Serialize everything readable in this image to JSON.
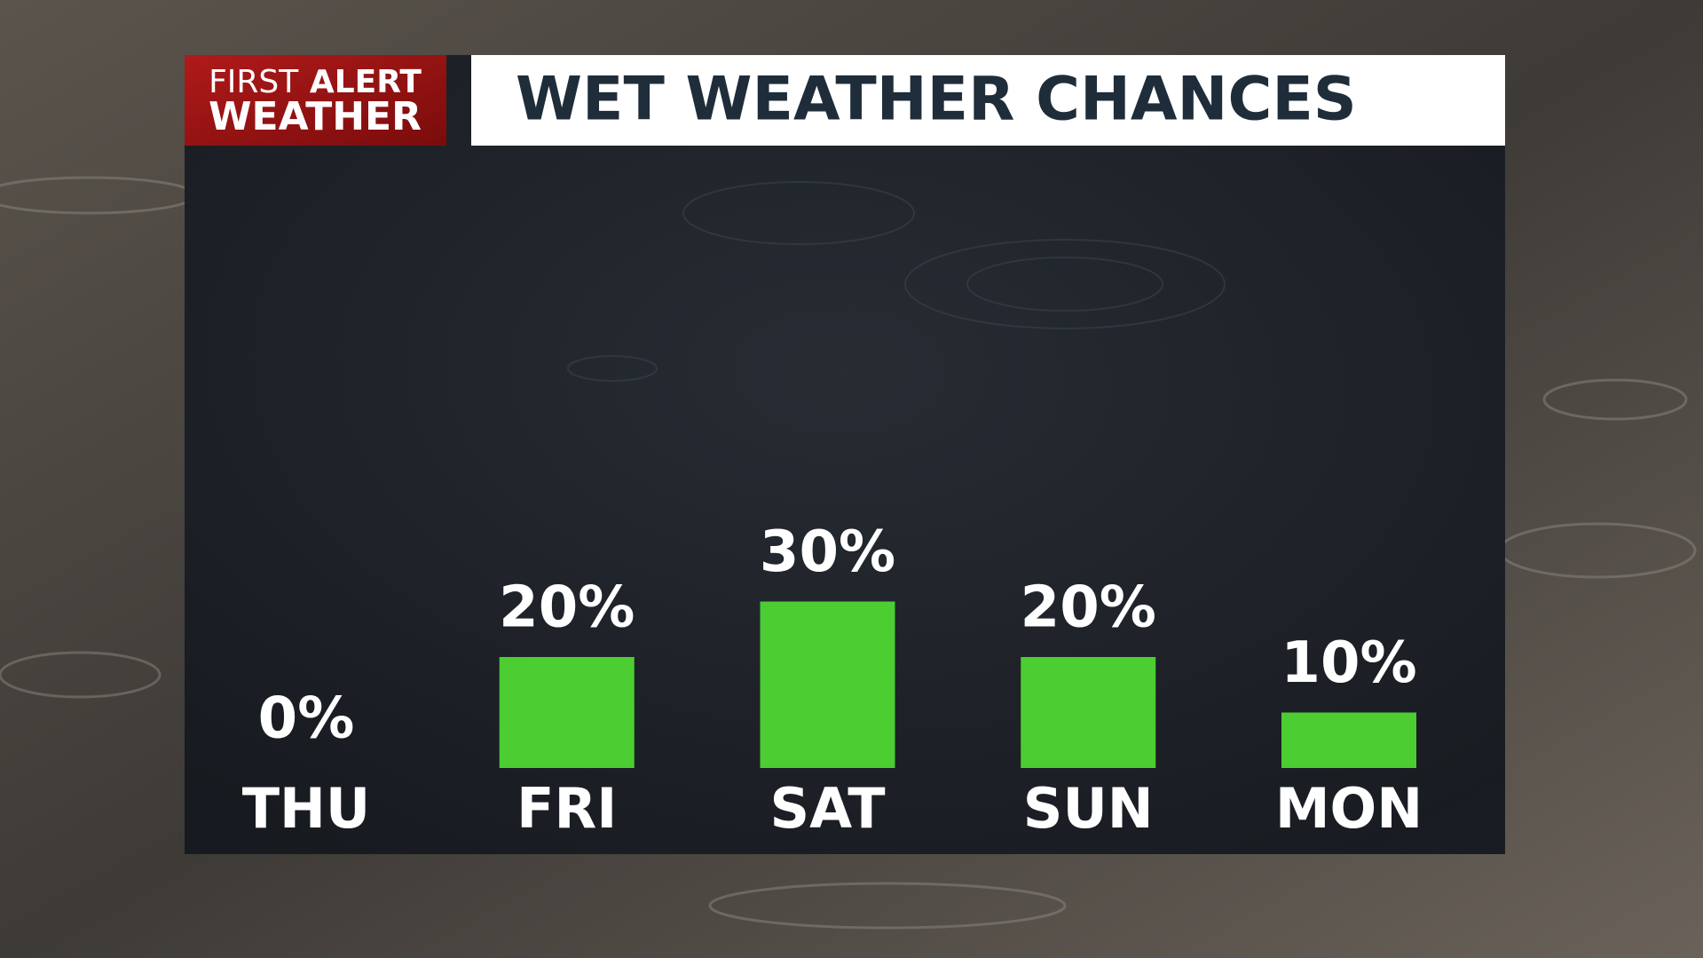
{
  "chart_data": {
    "type": "bar",
    "title": "WET WEATHER CHANCES",
    "logo": [
      "FIRST",
      "ALERT",
      "WEATHER"
    ],
    "categories": [
      "THU",
      "FRI",
      "SAT",
      "SUN",
      "MON"
    ],
    "values": [
      0,
      20,
      30,
      20,
      10
    ],
    "value_labels": [
      "0%",
      "20%",
      "30%",
      "20%",
      "10%"
    ],
    "color": "#4ccd31"
  }
}
